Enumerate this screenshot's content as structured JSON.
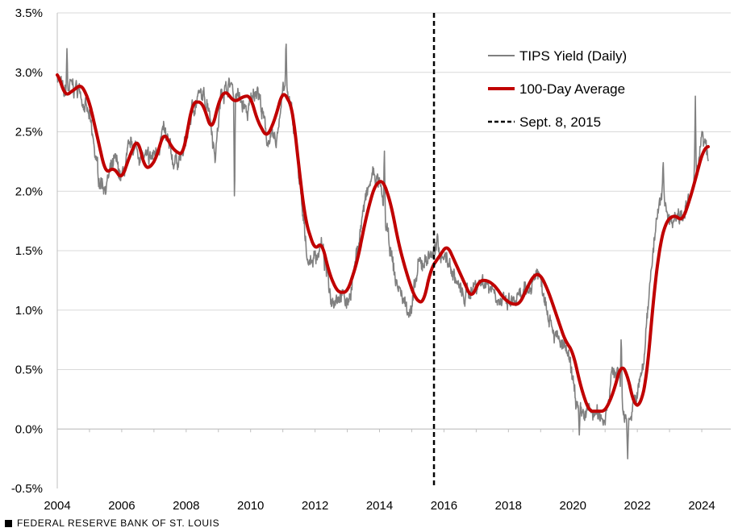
{
  "chart_data": {
    "type": "line",
    "title": "",
    "xlabel": "",
    "ylabel": "",
    "xlim": [
      2004,
      2024.9
    ],
    "ylim": [
      -0.5,
      3.5
    ],
    "x_ticks": [
      2004,
      2006,
      2008,
      2010,
      2012,
      2014,
      2016,
      2018,
      2020,
      2022,
      2024
    ],
    "x_tick_labels": [
      "2004",
      "2006",
      "2008",
      "2010",
      "2012",
      "2014",
      "2016",
      "2018",
      "2020",
      "2022",
      "2024"
    ],
    "y_ticks": [
      -0.5,
      0.0,
      0.5,
      1.0,
      1.5,
      2.0,
      2.5,
      3.0,
      3.5
    ],
    "y_tick_labels": [
      "-0.5%",
      "0.0%",
      "0.5%",
      "1.0%",
      "1.5%",
      "2.0%",
      "2.5%",
      "3.0%",
      "3.5%"
    ],
    "legend_position": "top-right",
    "series": [
      {
        "name": "TIPS Yield (Daily)",
        "color": "#808080",
        "style": "thin",
        "noise": 0.07,
        "spikes": [
          [
            2004.3,
            3.2
          ],
          [
            2009.5,
            1.83
          ],
          [
            2011.1,
            3.3
          ],
          [
            2015.8,
            1.65
          ],
          [
            2020.2,
            -0.05
          ],
          [
            2021.7,
            -0.25
          ],
          [
            2021.5,
            0.82
          ],
          [
            2022.8,
            2.27
          ],
          [
            2023.8,
            2.8
          ],
          [
            2014.15,
            2.38
          ]
        ],
        "x": [
          2004.0,
          2004.2,
          2004.4,
          2004.7,
          2005.0,
          2005.3,
          2005.5,
          2005.8,
          2006.0,
          2006.3,
          2006.6,
          2006.8,
          2007.0,
          2007.3,
          2007.6,
          2007.9,
          2008.2,
          2008.4,
          2008.7,
          2008.9,
          2009.1,
          2009.4,
          2009.6,
          2009.9,
          2010.2,
          2010.5,
          2010.8,
          2011.0,
          2011.2,
          2011.4,
          2011.6,
          2011.8,
          2012.0,
          2012.2,
          2012.5,
          2012.8,
          2013.0,
          2013.2,
          2013.5,
          2013.8,
          2014.0,
          2014.2,
          2014.5,
          2014.8,
          2015.0,
          2015.2,
          2015.5,
          2015.7,
          2016.0,
          2016.3,
          2016.6,
          2016.9,
          2017.2,
          2017.5,
          2017.8,
          2018.0,
          2018.3,
          2018.6,
          2018.9,
          2019.2,
          2019.5,
          2019.8,
          2020.0,
          2020.2,
          2020.5,
          2020.8,
          2021.0,
          2021.2,
          2021.4,
          2021.6,
          2021.8,
          2022.0,
          2022.2,
          2022.4,
          2022.6,
          2022.8,
          2023.0,
          2023.2,
          2023.5,
          2023.7,
          2023.9,
          2024.0,
          2024.2
        ],
        "values": [
          3.0,
          2.8,
          2.88,
          2.85,
          2.6,
          2.1,
          2.05,
          2.25,
          2.1,
          2.4,
          2.3,
          2.25,
          2.3,
          2.5,
          2.25,
          2.3,
          2.7,
          2.8,
          2.75,
          2.3,
          2.85,
          2.9,
          2.8,
          2.65,
          2.9,
          2.45,
          2.4,
          2.9,
          2.75,
          2.45,
          1.8,
          1.4,
          1.45,
          1.55,
          1.1,
          1.15,
          1.05,
          1.3,
          1.85,
          2.15,
          2.05,
          1.7,
          1.25,
          1.05,
          1.0,
          1.35,
          1.45,
          1.5,
          1.48,
          1.3,
          1.1,
          1.2,
          1.25,
          1.2,
          1.05,
          1.05,
          1.08,
          1.15,
          1.35,
          1.05,
          0.75,
          0.65,
          0.4,
          0.1,
          0.15,
          0.1,
          0.1,
          0.45,
          0.5,
          0.1,
          0.1,
          0.3,
          0.55,
          1.3,
          1.75,
          2.0,
          1.75,
          1.8,
          1.85,
          1.95,
          2.3,
          2.45,
          2.3
        ]
      },
      {
        "name": "100-Day Average",
        "color": "#c00000",
        "style": "thick",
        "x": [
          2004.0,
          2004.25,
          2004.5,
          2004.75,
          2005.0,
          2005.25,
          2005.5,
          2005.75,
          2006.0,
          2006.25,
          2006.5,
          2006.7,
          2006.9,
          2007.1,
          2007.3,
          2007.6,
          2007.9,
          2008.2,
          2008.5,
          2008.8,
          2009.0,
          2009.2,
          2009.5,
          2009.8,
          2010.0,
          2010.2,
          2010.5,
          2010.75,
          2011.0,
          2011.3,
          2011.5,
          2011.7,
          2012.0,
          2012.2,
          2012.45,
          2012.7,
          2013.0,
          2013.3,
          2013.6,
          2013.85,
          2014.1,
          2014.35,
          2014.6,
          2014.85,
          2015.1,
          2015.35,
          2015.6,
          2015.85,
          2016.1,
          2016.35,
          2016.6,
          2016.85,
          2017.1,
          2017.35,
          2017.6,
          2017.85,
          2018.1,
          2018.35,
          2018.6,
          2018.8,
          2019.0,
          2019.25,
          2019.5,
          2019.75,
          2020.0,
          2020.25,
          2020.5,
          2020.75,
          2021.0,
          2021.25,
          2021.5,
          2021.7,
          2021.9,
          2022.1,
          2022.3,
          2022.5,
          2022.7,
          2022.9,
          2023.15,
          2023.4,
          2023.65,
          2023.85,
          2024.05,
          2024.2
        ],
        "values": [
          3.0,
          2.8,
          2.85,
          2.9,
          2.75,
          2.45,
          2.15,
          2.2,
          2.1,
          2.3,
          2.45,
          2.2,
          2.2,
          2.3,
          2.5,
          2.35,
          2.3,
          2.75,
          2.75,
          2.5,
          2.75,
          2.85,
          2.75,
          2.8,
          2.8,
          2.6,
          2.45,
          2.6,
          2.85,
          2.7,
          2.2,
          1.75,
          1.5,
          1.58,
          1.3,
          1.15,
          1.15,
          1.4,
          1.8,
          2.05,
          2.1,
          1.9,
          1.55,
          1.3,
          1.1,
          1.05,
          1.35,
          1.45,
          1.55,
          1.4,
          1.25,
          1.1,
          1.25,
          1.25,
          1.2,
          1.1,
          1.05,
          1.05,
          1.2,
          1.3,
          1.3,
          1.15,
          0.95,
          0.75,
          0.65,
          0.35,
          0.15,
          0.15,
          0.15,
          0.3,
          0.55,
          0.45,
          0.2,
          0.2,
          0.45,
          1.1,
          1.55,
          1.75,
          1.8,
          1.75,
          1.95,
          2.15,
          2.35,
          2.38
        ]
      }
    ],
    "reference_line": {
      "name": "Sept. 8, 2015",
      "x": 2015.69,
      "style": "dashed",
      "color": "#000000"
    },
    "legend": [
      {
        "label": "TIPS Yield (Daily)",
        "color": "#808080",
        "style": "thin"
      },
      {
        "label": "100-Day Average",
        "color": "#c00000",
        "style": "thick"
      },
      {
        "label": "Sept. 8, 2015",
        "color": "#000000",
        "style": "dashed"
      }
    ]
  },
  "source": "FEDERAL RESERVE BANK OF ST. LOUIS"
}
